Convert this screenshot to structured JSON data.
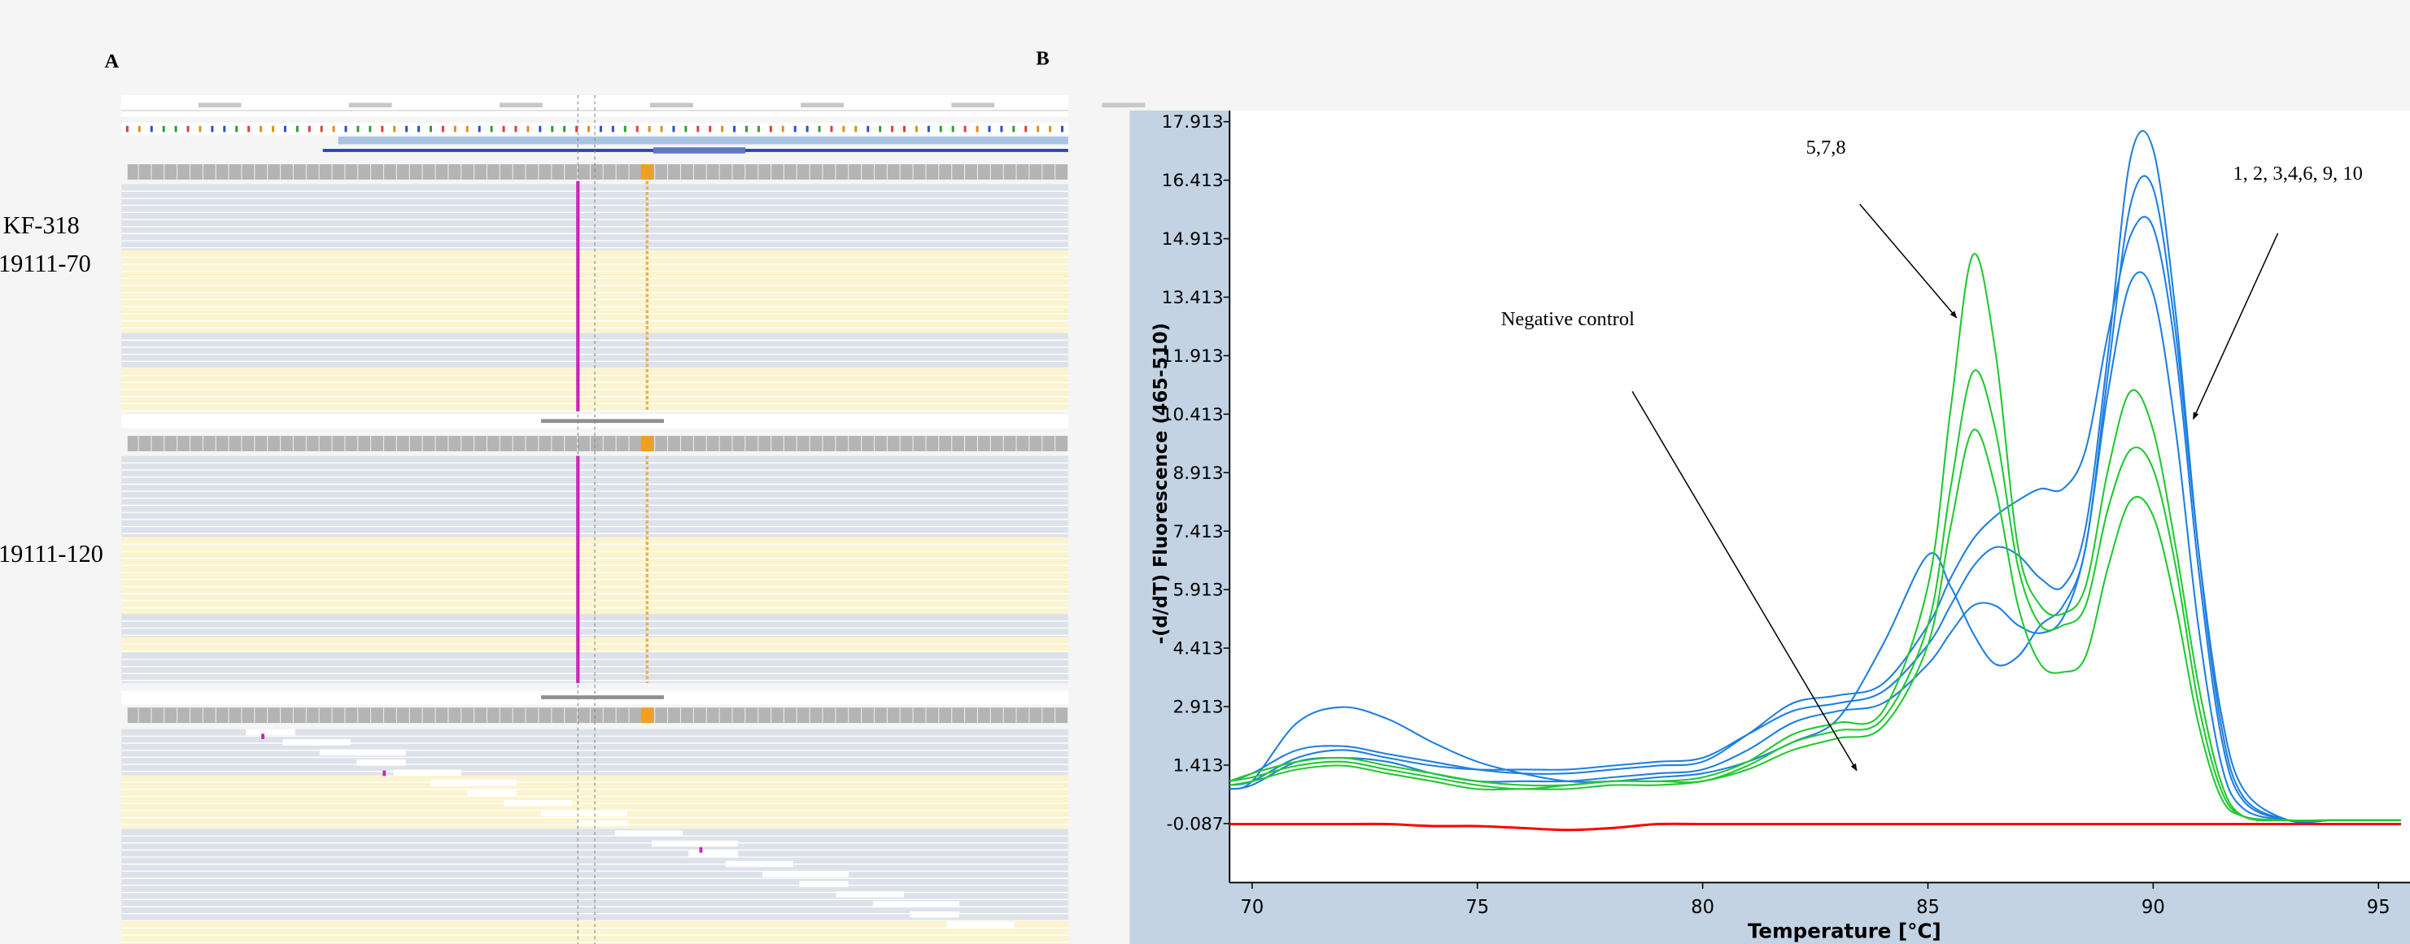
{
  "figure": {
    "panel_labels": [
      "A",
      "B"
    ],
    "sample_labels": [
      "KF-318",
      "19111-70",
      "19111-120"
    ]
  },
  "chart_data": {
    "type": "line",
    "x_label": "Temperature [°C]",
    "y_label": "-(d/dT) Fluorescence (465-510)",
    "annotations": [
      "5,7,8",
      "1, 2, 3,4,6, 9, 10",
      "Negative control"
    ],
    "xlim": [
      69.5,
      95.7
    ],
    "xticks": [
      70,
      75,
      80,
      85,
      90,
      95
    ],
    "ylim": [
      -1.6,
      18.2
    ],
    "yticks": [
      -0.087,
      1.413,
      2.913,
      4.413,
      5.913,
      7.413,
      8.913,
      10.413,
      11.913,
      13.413,
      14.913,
      16.413,
      17.913
    ],
    "grid": false,
    "x": [
      69.5,
      70,
      71,
      72,
      73,
      74,
      75,
      76,
      77,
      78,
      79,
      80,
      81,
      82,
      83,
      84,
      85,
      85.5,
      86,
      86.5,
      87,
      87.5,
      88,
      88.5,
      89,
      89.5,
      90,
      90.5,
      91,
      91.5,
      92,
      93,
      94,
      95,
      95.5
    ],
    "series": [
      {
        "color": "#1f7fe0",
        "values": [
          0.9,
          1.0,
          1.6,
          1.8,
          1.6,
          1.4,
          1.3,
          1.3,
          1.3,
          1.4,
          1.5,
          1.6,
          2.2,
          2.8,
          3.0,
          3.3,
          4.5,
          5.5,
          6.5,
          7.0,
          6.8,
          6.2,
          6.0,
          7.5,
          12.0,
          17.0,
          17.2,
          13.0,
          7.0,
          2.5,
          0.6,
          0.0,
          0.0,
          0.0,
          0.0
        ]
      },
      {
        "color": "#1f7fe0",
        "values": [
          0.8,
          1.0,
          2.5,
          2.9,
          2.6,
          2.0,
          1.5,
          1.2,
          1.0,
          1.0,
          1.1,
          1.2,
          1.5,
          2.0,
          2.6,
          4.5,
          6.8,
          6.0,
          4.8,
          4.0,
          4.2,
          5.0,
          5.5,
          7.0,
          11.5,
          15.8,
          16.2,
          12.5,
          7.0,
          2.8,
          0.8,
          0.0,
          0.0,
          0.0,
          0.0
        ]
      },
      {
        "color": "#1f7fe0",
        "values": [
          1.0,
          1.2,
          1.8,
          1.9,
          1.7,
          1.5,
          1.3,
          1.2,
          1.2,
          1.3,
          1.4,
          1.5,
          2.2,
          3.0,
          3.2,
          3.5,
          5.0,
          6.2,
          7.2,
          7.8,
          8.2,
          8.5,
          8.5,
          9.5,
          12.5,
          15.0,
          15.2,
          12.0,
          6.5,
          2.2,
          0.5,
          0.0,
          0.0,
          0.0,
          0.0
        ]
      },
      {
        "color": "#1f7fe0",
        "values": [
          0.8,
          0.9,
          1.5,
          1.6,
          1.5,
          1.2,
          1.0,
          1.0,
          1.0,
          1.1,
          1.2,
          1.3,
          1.8,
          2.5,
          2.8,
          3.0,
          4.0,
          4.8,
          5.5,
          5.5,
          5.0,
          4.8,
          5.2,
          7.0,
          11.0,
          13.8,
          13.5,
          10.0,
          5.0,
          1.5,
          0.3,
          0.0,
          0.0,
          0.0,
          0.0
        ]
      },
      {
        "color": "#22c832",
        "values": [
          1.0,
          1.2,
          1.5,
          1.6,
          1.4,
          1.2,
          1.0,
          0.9,
          0.9,
          1.0,
          1.0,
          1.1,
          1.5,
          2.2,
          2.5,
          2.8,
          6.0,
          10.5,
          14.5,
          12.0,
          7.0,
          5.5,
          5.3,
          6.0,
          9.0,
          11.0,
          10.0,
          7.0,
          3.5,
          1.0,
          0.1,
          0.0,
          0.0,
          0.0,
          0.0
        ]
      },
      {
        "color": "#22c832",
        "values": [
          1.0,
          1.1,
          1.4,
          1.5,
          1.3,
          1.1,
          0.9,
          0.8,
          0.9,
          1.0,
          1.0,
          1.0,
          1.4,
          2.0,
          2.3,
          2.6,
          5.0,
          8.5,
          11.5,
          10.0,
          6.5,
          5.0,
          5.0,
          5.5,
          8.0,
          9.5,
          9.0,
          6.5,
          3.0,
          0.8,
          0.1,
          0.0,
          0.0,
          0.0,
          0.0
        ]
      },
      {
        "color": "#22c832",
        "values": [
          0.9,
          1.0,
          1.3,
          1.4,
          1.2,
          1.0,
          0.8,
          0.8,
          0.8,
          0.9,
          0.9,
          1.0,
          1.3,
          1.8,
          2.1,
          2.4,
          4.5,
          7.5,
          10.0,
          8.5,
          5.5,
          4.0,
          3.8,
          4.2,
          6.5,
          8.2,
          7.8,
          5.5,
          2.5,
          0.6,
          0.1,
          0.0,
          0.0,
          0.0,
          0.0
        ]
      },
      {
        "color": "#ff0000",
        "values": [
          -0.1,
          -0.1,
          -0.1,
          -0.1,
          -0.1,
          -0.15,
          -0.15,
          -0.2,
          -0.25,
          -0.2,
          -0.1,
          -0.1,
          -0.1,
          -0.1,
          -0.1,
          -0.1,
          -0.1,
          -0.1,
          -0.1,
          -0.1,
          -0.1,
          -0.1,
          -0.1,
          -0.1,
          -0.1,
          -0.1,
          -0.1,
          -0.1,
          -0.1,
          -0.1,
          -0.1,
          -0.1,
          -0.1,
          -0.1,
          -0.1
        ]
      }
    ]
  }
}
